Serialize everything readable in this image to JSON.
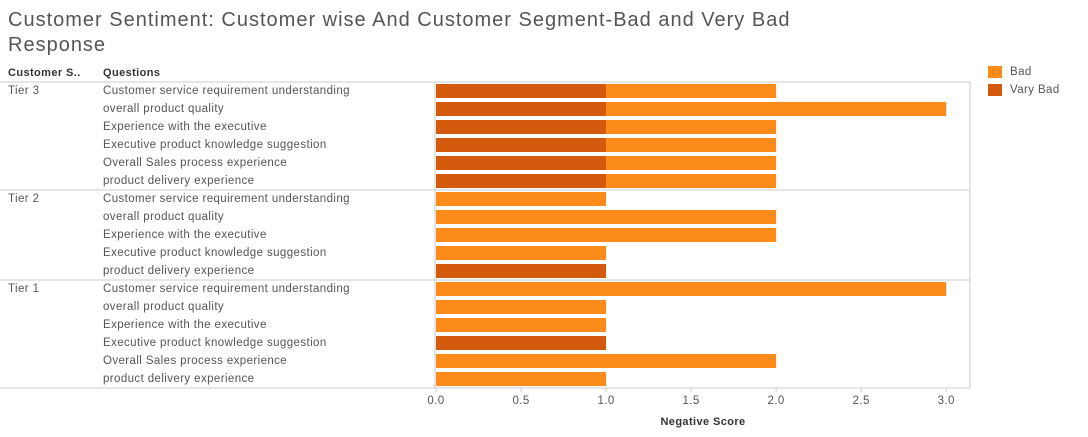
{
  "chart_data": {
    "type": "bar",
    "orientation": "horizontal",
    "title": "Customer Sentiment: Customer wise And Customer Segment-Bad and Very Bad Response",
    "segment_header": "Customer S..",
    "category_header": "Questions",
    "x_label": "Negative Score",
    "segments": [
      "Tier 3",
      null,
      null,
      null,
      null,
      null,
      "Tier 2",
      null,
      null,
      null,
      null,
      "Tier 1",
      null,
      null,
      null,
      null,
      null
    ],
    "categories": [
      "Customer service requirement understanding",
      "overall product quality",
      "Experience with the executive",
      "Executive product knowledge suggestion",
      "Overall Sales process experience",
      "product delivery experience",
      "Customer service requirement understanding",
      "overall product quality",
      "Experience with the executive",
      "Executive product knowledge suggestion",
      "product delivery experience",
      "Customer service requirement understanding",
      "overall product quality",
      "Experience with the executive",
      "Executive product knowledge suggestion",
      "Overall Sales process experience",
      "product delivery experience"
    ],
    "series": [
      {
        "name": "Bad",
        "color": "#fd8b1a",
        "values": [
          1,
          2,
          1,
          1,
          1,
          1,
          1,
          2,
          2,
          1,
          null,
          3,
          1,
          1,
          null,
          2,
          1
        ]
      },
      {
        "name": "Vary Bad",
        "color": "#d3590c",
        "values": [
          1,
          1,
          1,
          1,
          1,
          1,
          null,
          null,
          null,
          null,
          1,
          null,
          null,
          null,
          1,
          null,
          null
        ]
      }
    ],
    "xlim": [
      0,
      3.14
    ],
    "xticks": [
      {
        "value": 0,
        "label": "0.0"
      },
      {
        "value": 0.5,
        "label": "0.5"
      },
      {
        "value": 1,
        "label": "1.0"
      },
      {
        "value": 1.5,
        "label": "1.5"
      },
      {
        "value": 2,
        "label": "2.0"
      },
      {
        "value": 2.5,
        "label": "2.5"
      },
      {
        "value": 3,
        "label": "3.0"
      }
    ],
    "legend": "top-right"
  }
}
